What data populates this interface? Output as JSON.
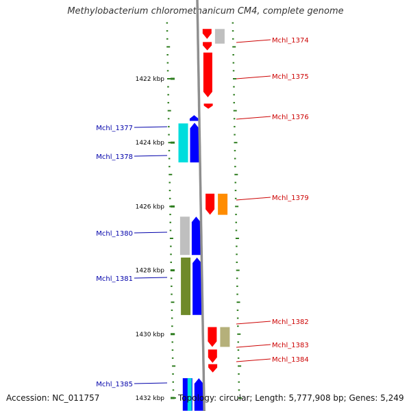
{
  "title": "Methylobacterium chloromethanicum CM4, complete genome",
  "footer": {
    "accession": "Accession: NC_011757",
    "topology": "Topology: circular; Length: 5,777,908 bp; Genes: 5,249"
  },
  "colors": {
    "backbone": "#8f8f8f",
    "ticks": "#2e7d1f",
    "plus_label": "#cc0000",
    "minus_label": "#0000aa",
    "red": "#ff0000",
    "blue": "#0000ff",
    "cyan": "#00dddd",
    "gray": "#bfbfbf",
    "olive": "#6f8a2a",
    "orange": "#ff8c00",
    "khaki": "#b5b07a"
  },
  "scale": {
    "unit": "kbp",
    "labels": [
      {
        "text": "1422 kbp",
        "kbp": 1422
      },
      {
        "text": "1424 kbp",
        "kbp": 1424
      },
      {
        "text": "1426 kbp",
        "kbp": 1426
      },
      {
        "text": "1428 kbp",
        "kbp": 1428
      },
      {
        "text": "1430 kbp",
        "kbp": 1430
      },
      {
        "text": "1432 kbp",
        "kbp": 1432
      }
    ]
  },
  "genes": [
    {
      "label": "",
      "strand": "+",
      "color": "red",
      "start": 1420.44,
      "end": 1420.75
    },
    {
      "label": "",
      "strand": "+",
      "color": "red",
      "start": 1420.85,
      "end": 1421.11
    },
    {
      "label": "",
      "strand": "+",
      "color": "red",
      "start": 1421.18,
      "end": 1422.58
    },
    {
      "label": "",
      "strand": "+",
      "color": "red",
      "start": 1422.78,
      "end": 1422.94
    },
    {
      "label": "",
      "strand": "-",
      "color": "blue",
      "start": 1423.14,
      "end": 1423.32
    },
    {
      "label": "",
      "strand": "-",
      "color": "blue",
      "start": 1423.38,
      "end": 1424.62
    },
    {
      "label": "",
      "strand": "+",
      "color": "red",
      "start": 1425.6,
      "end": 1426.26
    },
    {
      "label": "",
      "strand": "-",
      "color": "blue",
      "start": 1426.32,
      "end": 1427.52
    },
    {
      "label": "",
      "strand": "-",
      "color": "blue",
      "start": 1427.6,
      "end": 1429.4
    },
    {
      "label": "",
      "strand": "+",
      "color": "red",
      "start": 1429.78,
      "end": 1430.4
    },
    {
      "label": "",
      "strand": "+",
      "color": "red",
      "start": 1430.48,
      "end": 1430.9
    },
    {
      "label": "",
      "strand": "+",
      "color": "red",
      "start": 1430.94,
      "end": 1431.2
    },
    {
      "label": "",
      "strand": "-",
      "color": "blue",
      "start": 1431.38,
      "end": 1432.4
    }
  ],
  "features": [
    {
      "label": "",
      "track": "outer",
      "color": "gray",
      "start": 1420.44,
      "end": 1420.9
    },
    {
      "label": "",
      "track": "inner",
      "color": "cyan",
      "start": 1423.4,
      "end": 1424.62
    },
    {
      "label": "",
      "track": "outer",
      "color": "orange",
      "start": 1425.6,
      "end": 1426.26
    },
    {
      "label": "",
      "track": "inner",
      "color": "gray",
      "start": 1426.32,
      "end": 1427.52
    },
    {
      "label": "",
      "track": "inner",
      "color": "olive",
      "start": 1427.6,
      "end": 1429.4
    },
    {
      "label": "",
      "track": "outer",
      "color": "khaki",
      "start": 1429.78,
      "end": 1430.4
    },
    {
      "label": "",
      "track": "inner",
      "color": "blue",
      "start": 1431.38,
      "end": 1432.4
    },
    {
      "label": "",
      "track": "inner",
      "color": "cyan",
      "start": 1431.38,
      "end": 1432.4
    }
  ],
  "gene_labels": [
    {
      "text": "Mchl_1374",
      "strand": "+"
    },
    {
      "text": "Mchl_1375",
      "strand": "+"
    },
    {
      "text": "Mchl_1376",
      "strand": "+"
    },
    {
      "text": "Mchl_1377",
      "strand": "-"
    },
    {
      "text": "Mchl_1378",
      "strand": "-"
    },
    {
      "text": "Mchl_1379",
      "strand": "+"
    },
    {
      "text": "Mchl_1380",
      "strand": "-"
    },
    {
      "text": "Mchl_1381",
      "strand": "-"
    },
    {
      "text": "Mchl_1382",
      "strand": "+"
    },
    {
      "text": "Mchl_1383",
      "strand": "+"
    },
    {
      "text": "Mchl_1384",
      "strand": "+"
    },
    {
      "text": "Mchl_1385",
      "strand": "-"
    }
  ]
}
